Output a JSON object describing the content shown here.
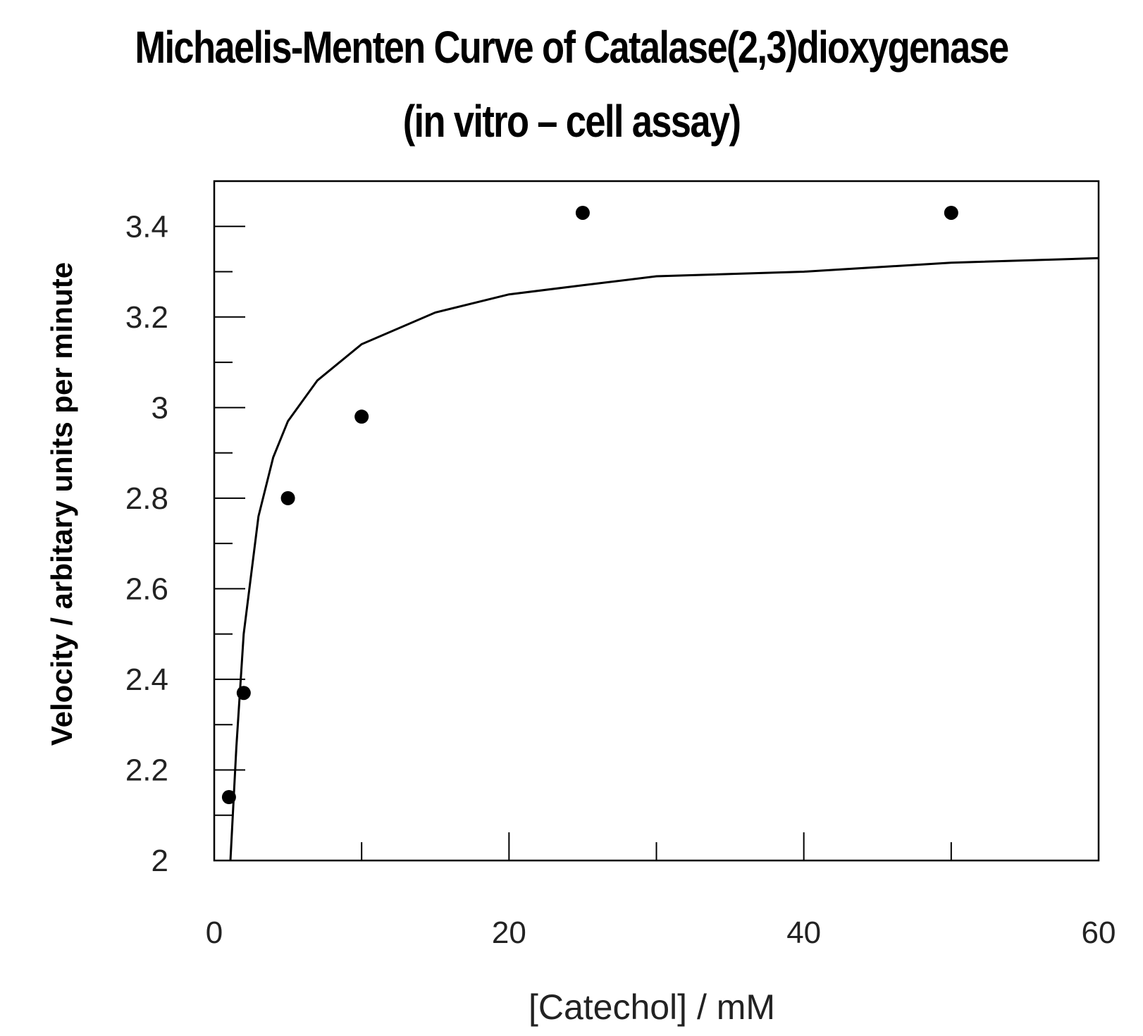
{
  "chart_data": {
    "type": "scatter",
    "title": "Michaelis-Menten Curve of Catalase(2,3)dioxygenase",
    "subtitle": "(in vitro – cell assay)",
    "xlabel": "[Catechol] / mM",
    "ylabel": "Velocity / arbitary units per minute",
    "xlim": [
      0,
      60
    ],
    "ylim": [
      2,
      3.5
    ],
    "x_ticks": [
      0,
      20,
      40,
      60
    ],
    "y_ticks": [
      2,
      2.2,
      2.4,
      2.6,
      2.8,
      3,
      3.2,
      3.4
    ],
    "x_tick_labels": [
      "0",
      "20",
      "40",
      "60"
    ],
    "y_tick_labels": [
      "2",
      "2.2",
      "2.4",
      "2.6",
      "2.8",
      "3",
      "3.2",
      "3.4"
    ],
    "grid": false,
    "points": {
      "x": [
        1,
        2,
        5,
        10,
        25,
        50
      ],
      "y": [
        2.14,
        2.37,
        2.8,
        2.98,
        3.43,
        3.43
      ]
    },
    "fit_curve": {
      "model": "michaelis-menten",
      "x": [
        1.1,
        1.5,
        2,
        3,
        4,
        5,
        7,
        10,
        15,
        20,
        25,
        30,
        40,
        50,
        60
      ],
      "y": [
        2.0,
        2.25,
        2.5,
        2.76,
        2.89,
        2.97,
        3.06,
        3.14,
        3.21,
        3.25,
        3.27,
        3.29,
        3.3,
        3.32,
        3.33
      ]
    },
    "colors": {
      "points": "#000000",
      "curve": "#000000",
      "axes": "#000000"
    }
  }
}
